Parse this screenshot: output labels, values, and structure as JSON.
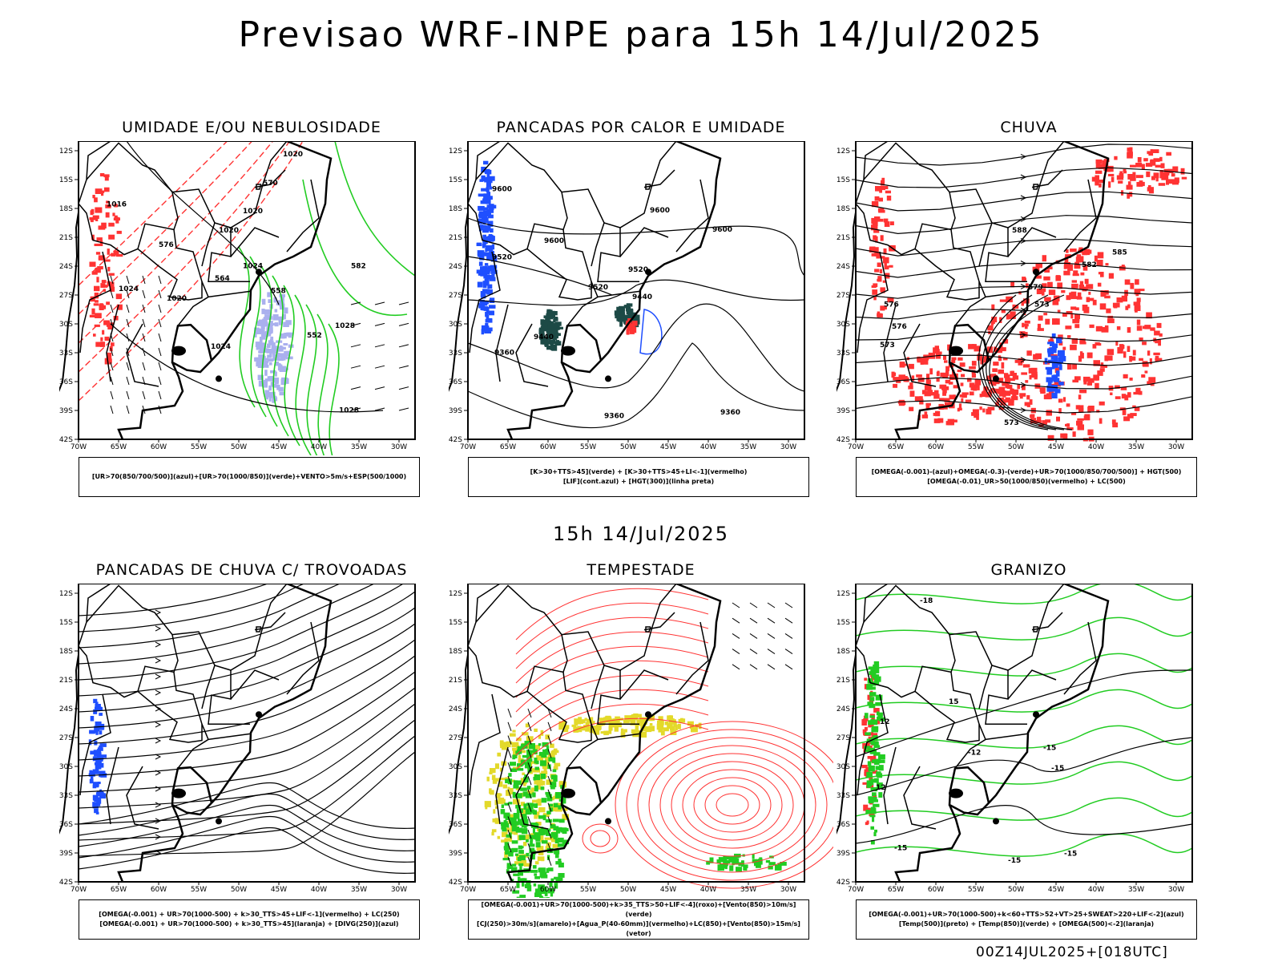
{
  "main_title": "Previsao WRF-INPE  para 15h 14/Jul/2025",
  "mid_title": "15h 14/Jul/2025",
  "footer": "00Z14JUL2025+[018UTC]",
  "lat_ticks": [
    "12S",
    "15S",
    "18S",
    "21S",
    "24S",
    "27S",
    "30S",
    "33S",
    "36S",
    "39S",
    "42S"
  ],
  "lon_ticks": [
    "70W",
    "65W",
    "60W",
    "55W",
    "50W",
    "45W",
    "40W",
    "35W",
    "30W"
  ],
  "colors": {
    "blue": "#1f4fff",
    "green": "#22cc22",
    "red": "#ff3333",
    "dark_teal": "#1d4a46",
    "lavender": "#aab0ee",
    "yellow": "#e3d92a"
  },
  "panels": [
    {
      "title": "UMIDADE E/OU NEBULOSIDADE",
      "legend": [
        "[UR>70(850/700/500)](azul)+[UR>70(1000/850)](verde)+VENTO>5m/s+ESP(500/1000)"
      ],
      "contour_labels": [
        "1020",
        "1016",
        "1020",
        "1020",
        "1024",
        "1024",
        "1020",
        "1024",
        "1028",
        "1028",
        "552",
        "570",
        "558",
        "564",
        "576",
        "582"
      ]
    },
    {
      "title": "PANCADAS POR CALOR E UMIDADE",
      "legend": [
        "[K>30+TTS>45](verde) + [K>30+TTS>45+LI<-1](vermelho)",
        "[LIF](cont.azul) + [HGT(300)](linha preta)"
      ],
      "contour_labels": [
        "9600",
        "9600",
        "9600",
        "9520",
        "9520",
        "9600",
        "9520",
        "9440",
        "9440",
        "9360",
        "9360",
        "9360"
      ]
    },
    {
      "title": "CHUVA",
      "legend": [
        "[OMEGA(-0.001)-(azul)+OMEGA(-0.3)-(verde)+UR>70(1000/850/700/500)] + HGT(500)",
        "[OMEGA(-0.01)_UR>50(1000/850)(vermelho) + LC(500)"
      ],
      "contour_labels": [
        "588",
        "585",
        "582",
        "579",
        "576",
        "573",
        "573",
        "576",
        "573"
      ]
    },
    {
      "title": "PANCADAS DE CHUVA C/ TROVOADAS",
      "legend": [
        "[OMEGA(-0.001) + UR>70(1000-500) + k>30_TTS>45+LIF<-1](vermelho) + LC(250)",
        "[OMEGA(-0.001) + UR>70(1000-500) + k>30_TTS>45](laranja) + [DIVG(250)](azul)"
      ],
      "contour_labels": []
    },
    {
      "title": "TEMPESTADE",
      "legend": [
        "[OMEGA(-0.001)+UR>70(1000-500)+k>35_TTS>50+LIF<-4](roxo)+[Vento(850)>10m/s](verde)",
        "[CJ(250)>30m/s](amarelo)+[Agua_P(40-60mm)](vermelho)+LC(850)+[Vento(850)>15m/s](vetor)"
      ],
      "contour_labels": []
    },
    {
      "title": "GRANIZO",
      "legend": [
        "[OMEGA(-0.001)+UR>70(1000-500)+k<60+TTS>52+VT>25+SWEAT>220+LIF<-2](azul)",
        "[Temp(500)](preto) + [Temp(850)](verde) + [OMEGA(500)<-2](laranja)"
      ],
      "contour_labels": [
        "-12",
        "-15",
        "-15",
        "-15",
        "12",
        "15",
        "12",
        "-18",
        "-15",
        "-15"
      ]
    }
  ]
}
